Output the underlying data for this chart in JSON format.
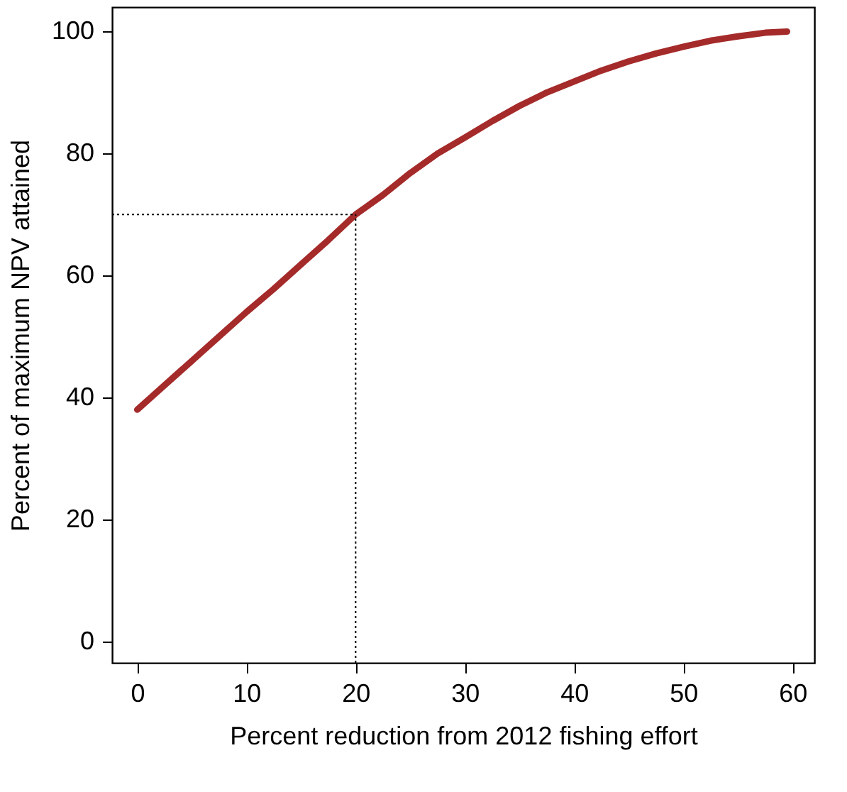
{
  "chart_data": {
    "type": "line",
    "xlabel": "Percent reduction from 2012 fishing effort",
    "ylabel": "Percent of maximum NPV attained",
    "x": [
      0,
      2.5,
      5,
      7.5,
      10,
      12.5,
      15,
      17.5,
      20,
      22.5,
      25,
      27.5,
      30,
      32.5,
      35,
      37.5,
      40,
      42.5,
      45,
      47.5,
      50,
      52.5,
      55,
      57.5,
      59.5
    ],
    "series": [
      {
        "color": "#a52a2a",
        "values": [
          38,
          42,
          46,
          50,
          54,
          57.8,
          61.8,
          65.8,
          70,
          73.2,
          76.8,
          80,
          82.6,
          85.3,
          87.8,
          90,
          91.8,
          93.6,
          95.1,
          96.4,
          97.5,
          98.5,
          99.2,
          99.8,
          100
        ]
      }
    ],
    "xlim": [
      -2.3,
      62
    ],
    "ylim": [
      -3.5,
      104
    ],
    "xticks": [
      0,
      10,
      20,
      30,
      40,
      50,
      60
    ],
    "yticks": [
      0,
      20,
      40,
      60,
      80,
      100
    ],
    "grid": false,
    "marker": "none",
    "line_style": "solid",
    "ref_lines": [
      {
        "axis": "y",
        "value": 70,
        "color": "#000000",
        "line_style": "dotted"
      },
      {
        "axis": "x",
        "value": 20,
        "color": "#000000",
        "line_style": "dotted"
      }
    ]
  }
}
